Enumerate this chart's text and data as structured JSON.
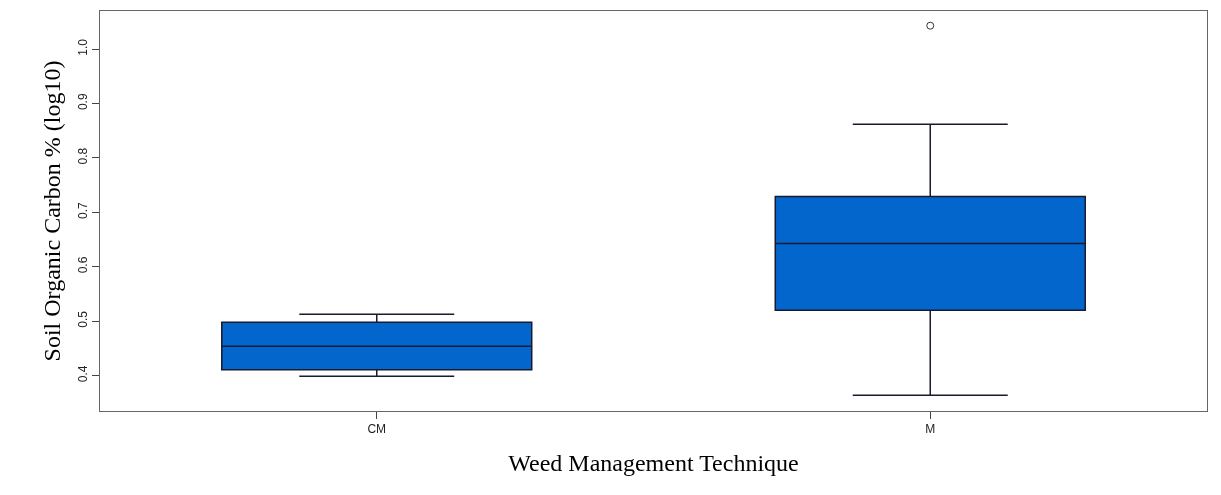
{
  "chart_data": {
    "type": "box",
    "xlabel": "Weed Management Technique",
    "ylabel": "Soil Organic Carbon % (log10)",
    "categories": [
      "CM",
      "M"
    ],
    "boxes": [
      {
        "low": 0.399,
        "q1": 0.411,
        "median": 0.454,
        "q3": 0.498,
        "high": 0.513
      },
      {
        "low": 0.364,
        "q1": 0.52,
        "median": 0.643,
        "q3": 0.729,
        "high": 0.862,
        "outliers": [
          1.043
        ]
      }
    ],
    "color": "#0366cc",
    "ylim": [
      0.335,
      1.07
    ],
    "yticks": [
      0.4,
      0.5,
      0.6,
      0.7,
      0.8,
      0.9,
      {
        "value": 1,
        "label": "1.0"
      }
    ],
    "marker": "circle"
  }
}
